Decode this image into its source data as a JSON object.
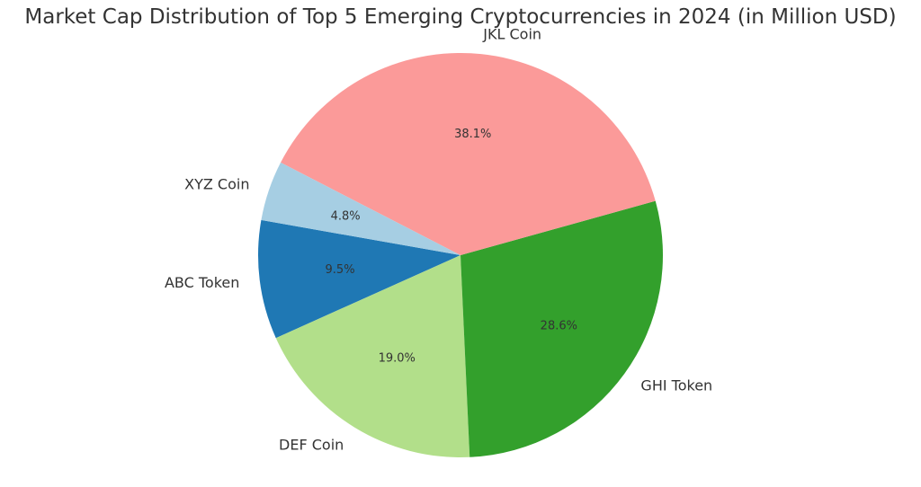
{
  "chart_data": {
    "type": "pie",
    "title": "Market Cap Distribution of Top 5 Emerging Cryptocurrencies in 2024 (in Million USD)",
    "categories": [
      "ABC Token",
      "DEF Coin",
      "GHI Token",
      "JKL Coin",
      "XYZ Coin"
    ],
    "values": [
      9.5,
      19.0,
      28.6,
      38.1,
      4.8
    ],
    "percent_labels": [
      "9.5%",
      "19.0%",
      "28.6%",
      "38.1%",
      "4.8%"
    ],
    "colors": [
      "#1f78b4",
      "#b2df8a",
      "#33a02c",
      "#fb9a99",
      "#a6cee3"
    ],
    "start_angle_deg": 170,
    "direction": "counterclockwise",
    "legend": "none"
  }
}
